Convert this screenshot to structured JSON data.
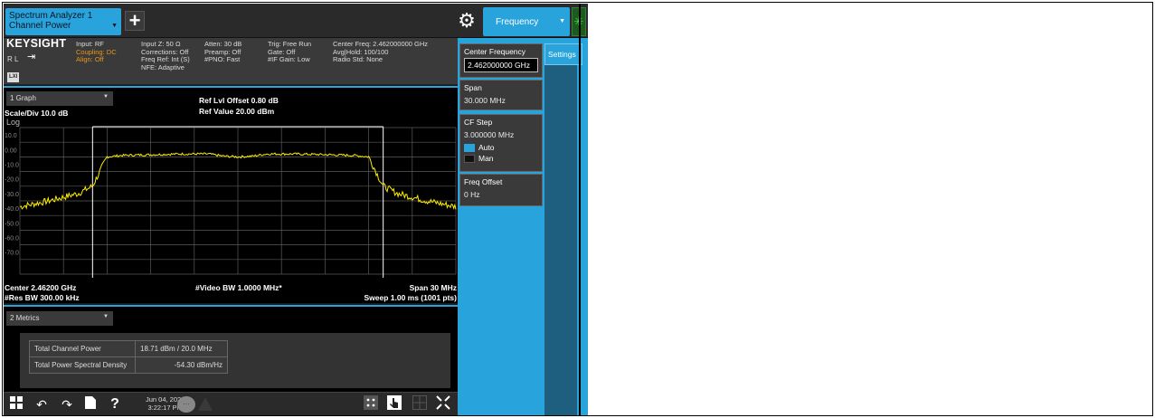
{
  "window": {
    "instrument_tab_line1": "Spectrum Analyzer 1",
    "instrument_tab_line2": "Channel Power",
    "add_label": "+",
    "freq_tab_label": "Frequency"
  },
  "info": {
    "brand": "KEYSIGHT",
    "rl": "R L",
    "lxi": "LXI",
    "col1": [
      "Input: RF",
      "Coupling: DC",
      "Align: Off"
    ],
    "col2": [
      "Input Z: 50 Ω",
      "Corrections: Off",
      "Freq Ref: Int (S)",
      "NFE: Adaptive"
    ],
    "col3": [
      "Atten: 30 dB",
      "Preamp: Off",
      "#PNO: Fast"
    ],
    "col4": [
      "Trig: Free Run",
      "Gate: Off",
      "#IF Gain: Low"
    ],
    "col5": [
      "Center Freq: 2.462000000 GHz",
      "Avg|Hold: 100/100",
      "Radio Std: None"
    ]
  },
  "graph": {
    "dropdown": "1 Graph",
    "ref_offset": "Ref Lvl Offset 0.80 dB",
    "ref_value": "Ref Value 20.00 dBm",
    "scale": "Scale/Div 10.0 dB",
    "log": "Log",
    "center": "Center 2.46200 GHz",
    "video_bw": "#Video BW 1.0000 MHz*",
    "span": "Span 30 MHz",
    "res_bw": "#Res BW 300.00 kHz",
    "sweep": "Sweep 1.00 ms (1001 pts)"
  },
  "chart_data": {
    "type": "line",
    "ylim": [
      -80,
      20
    ],
    "yticks": [
      "10.0",
      "0.00",
      "-10.0",
      "-20.0",
      "-30.0",
      "-40.0",
      "-50.0",
      "-60.0",
      "-70.0"
    ],
    "series": [
      {
        "x": [
          -15,
          -13,
          -11,
          -10,
          -9.5,
          -9,
          -8,
          -6,
          -4,
          -2,
          -1,
          0,
          1,
          2,
          4,
          6,
          8,
          9,
          9.5,
          10,
          11,
          13,
          15
        ],
        "y": [
          -34,
          -30,
          -25,
          -20,
          -10,
          0,
          1,
          1.5,
          2,
          2,
          0.5,
          0,
          0.5,
          2,
          2,
          1.5,
          1,
          0,
          -10,
          -20,
          -25,
          -30,
          -34
        ]
      }
    ],
    "channel_bw_markers_mhz": [
      -10,
      10
    ],
    "colors": {
      "trace": "#ffee00",
      "grid": "#5a5a5a",
      "markers": "#ffffff"
    }
  },
  "metrics": {
    "dropdown": "2 Metrics",
    "rows": [
      {
        "label": "Total Channel Power",
        "value": "18.71 dBm / 20.0 MHz"
      },
      {
        "label": "Total Power Spectral Density",
        "value": "-54.30 dBm/Hz"
      }
    ]
  },
  "taskbar": {
    "date": "Jun 04, 2020",
    "time": "3:22:17 PM"
  },
  "panel": {
    "center_freq_label": "Center Frequency",
    "center_freq_value": "2.462000000 GHz",
    "span_label": "Span",
    "span_value": "30.000 MHz",
    "cf_step_label": "CF Step",
    "cf_step_value": "3.000000 MHz",
    "auto_label": "Auto",
    "man_label": "Man",
    "freq_offset_label": "Freq Offset",
    "freq_offset_value": "0 Hz",
    "settings_tab": "Settings"
  }
}
